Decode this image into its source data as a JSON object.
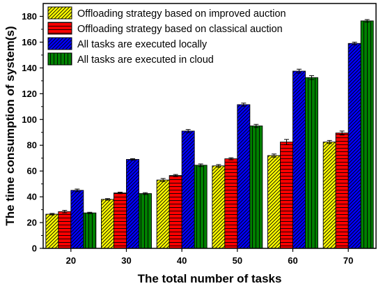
{
  "chart_data": {
    "type": "bar",
    "title": "",
    "xlabel": "The total number of tasks",
    "ylabel": "The time consumption of system(s)",
    "categories": [
      "20",
      "30",
      "40",
      "50",
      "60",
      "70"
    ],
    "ylim": [
      0,
      190
    ],
    "yticks": [
      "0",
      "20",
      "40",
      "60",
      "80",
      "100",
      "120",
      "140",
      "160",
      "180"
    ],
    "legend_position": "top-left",
    "error_bars": true,
    "series": [
      {
        "name": "Offloading strategy based on improved auction",
        "color": "#ffff00",
        "pattern": "diagonal-hatch",
        "values": [
          26.5,
          38,
          53,
          64,
          72,
          82.5
        ],
        "errors": [
          0.6,
          0.6,
          1.2,
          1.0,
          1.2,
          1.2
        ]
      },
      {
        "name": "Offloading strategy based on classical auction",
        "color": "#ff0000",
        "pattern": "horizontal-hatch",
        "values": [
          28.5,
          43,
          56.5,
          69.5,
          82.5,
          89.5
        ],
        "errors": [
          1.0,
          0.6,
          0.8,
          0.8,
          2.0,
          1.5
        ]
      },
      {
        "name": "All tasks are executed locally",
        "color": "#0000ff",
        "pattern": "diagonal-hatch",
        "values": [
          45,
          69,
          91,
          111.5,
          137.5,
          159
        ],
        "errors": [
          1.0,
          0.6,
          1.2,
          1.2,
          1.5,
          1.0
        ]
      },
      {
        "name": "All tasks are executed in cloud",
        "color": "#008000",
        "pattern": "vertical-hatch",
        "values": [
          27.5,
          42.5,
          64.5,
          95,
          132.5,
          176.5
        ],
        "errors": [
          0.5,
          0.7,
          1.0,
          1.2,
          1.5,
          1.0
        ]
      }
    ]
  }
}
